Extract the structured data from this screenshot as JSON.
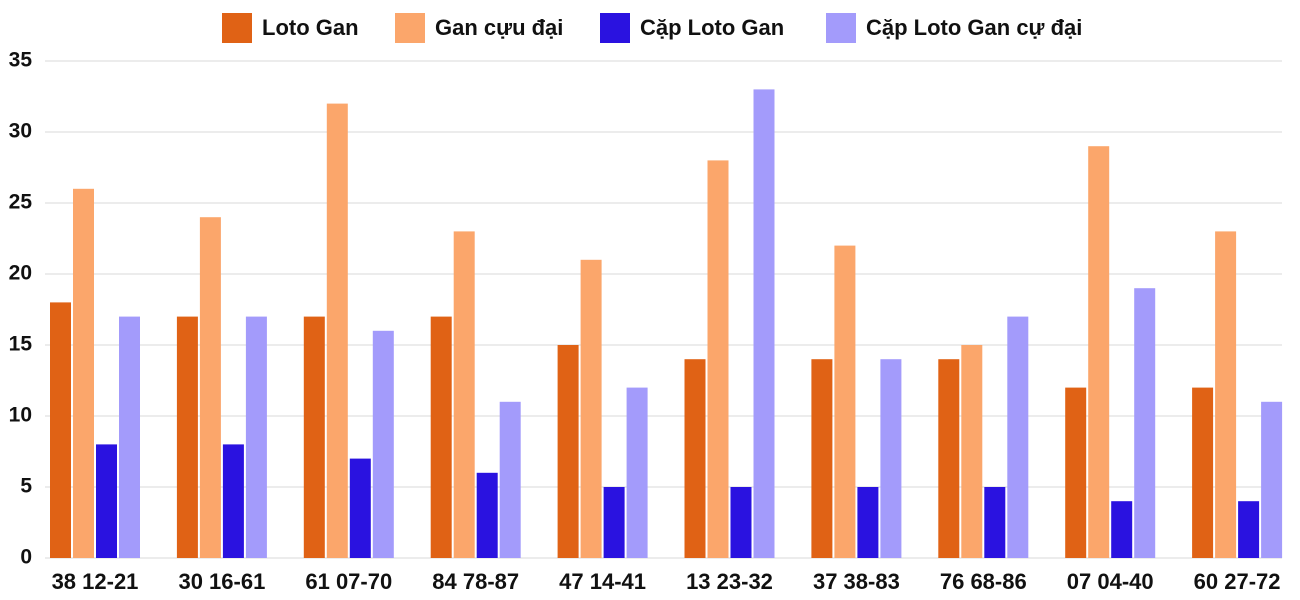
{
  "chart_data": {
    "type": "bar",
    "categories": [
      "38 12-21",
      "30 16-61",
      "61 07-70",
      "84 78-87",
      "47 14-41",
      "13 23-32",
      "37 38-83",
      "76 68-86",
      "07 04-40",
      "60 27-72"
    ],
    "series": [
      {
        "name": "Loto Gan",
        "color": "#e06215",
        "values": [
          18,
          17,
          17,
          17,
          15,
          14,
          14,
          14,
          12,
          12
        ]
      },
      {
        "name": "Gan cựu đại",
        "color": "#fba66b",
        "values": [
          26,
          24,
          32,
          23,
          21,
          28,
          22,
          15,
          29,
          23
        ]
      },
      {
        "name": "Cặp Loto Gan",
        "color": "#2a12e0",
        "values": [
          8,
          8,
          7,
          6,
          5,
          5,
          5,
          5,
          4,
          4
        ]
      },
      {
        "name": "Cặp Loto Gan cự đại",
        "color": "#a39bfb",
        "values": [
          17,
          17,
          16,
          11,
          12,
          33,
          14,
          17,
          19,
          11
        ]
      }
    ],
    "ylim": [
      0,
      35
    ],
    "yticks": [
      0,
      5,
      10,
      15,
      20,
      25,
      30,
      35
    ],
    "grid": true,
    "legend": "top"
  }
}
